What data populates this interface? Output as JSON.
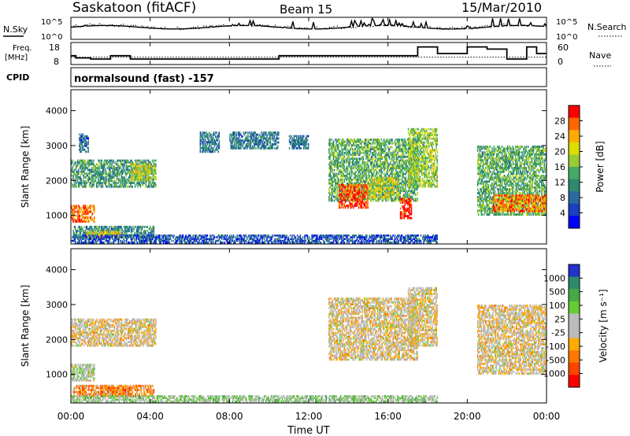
{
  "header": {
    "station": "Saskatoon (fitACF)",
    "beam": "Beam 15",
    "date": "15/Mar/2010",
    "n_sky_label": "N.Sky",
    "n_search_label": "N.Search",
    "freq_label_1": "Freq.",
    "freq_label_2": "[MHz]",
    "nave_label": "Nave",
    "cpid_label": "CPID",
    "cpid_text": "normalsound (fast) -157",
    "nsky_ticks": [
      "10^5",
      "10^0"
    ],
    "nsearch_ticks": [
      "10^5",
      "10^0"
    ],
    "freq_ticks": [
      "18",
      "8"
    ],
    "nave_ticks": [
      "60",
      "0"
    ]
  },
  "chart_data": [
    {
      "type": "line",
      "name": "sky-noise-strip",
      "series": [
        {
          "name": "N.Sky",
          "style": "solid"
        },
        {
          "name": "N.Search",
          "style": "dotted"
        }
      ]
    },
    {
      "type": "line",
      "name": "freq-nave-strip",
      "ylim": [
        8,
        18
      ],
      "y2lim": [
        0,
        60
      ],
      "series": [
        {
          "name": "Freq.",
          "style": "solid",
          "x": [
            0,
            0.25,
            0.5,
            1.0,
            1.5,
            2.0,
            2.5,
            3.0,
            3.5,
            4.0,
            4.5,
            5.0,
            5.5,
            6.0,
            6.5,
            7.0,
            7.5,
            8.0,
            8.5,
            9.0,
            9.5,
            10.0,
            10.5,
            11.0,
            11.5,
            12.0,
            12.5,
            13.0,
            13.5,
            14.0,
            14.5,
            15.0,
            15.5,
            16.0,
            16.5,
            17.0,
            17.5,
            18.0,
            18.5,
            19.0,
            19.5,
            20.0,
            20.5,
            21.0,
            21.5,
            22.0,
            22.5,
            23.0,
            23.5,
            24.0
          ],
          "y": [
            12,
            11,
            11,
            10.5,
            10.5,
            12,
            12,
            10.5,
            10.5,
            10.5,
            10.5,
            10.5,
            10.5,
            10.5,
            10.5,
            10.5,
            10.5,
            10.5,
            10.5,
            10.5,
            10.5,
            10.5,
            12,
            12,
            12,
            12,
            12,
            12,
            12,
            12,
            12,
            12,
            12,
            12,
            12,
            12,
            16,
            16,
            13,
            13,
            13,
            16,
            16,
            15,
            15,
            10.5,
            10.5,
            16,
            13,
            13
          ]
        },
        {
          "name": "Nave",
          "style": "dotted",
          "axis": "right",
          "y": 20
        }
      ]
    },
    {
      "type": "heatmap",
      "name": "power-panel",
      "xlabel": "",
      "ylabel": "Slant Range [km]",
      "xlim": [
        0,
        24
      ],
      "ylim": [
        180,
        4600
      ],
      "yticks": [
        1000,
        2000,
        3000,
        4000
      ],
      "colorbar": {
        "label": "Power [dB]",
        "ticks": [
          "28",
          "24",
          "20",
          "16",
          "12",
          "8",
          "4"
        ],
        "colors": [
          "#ff0000",
          "#ff6600",
          "#ffaa00",
          "#dddd00",
          "#99cc33",
          "#44aa66",
          "#2d8a6e",
          "#2a6aa0",
          "#1a3fc0",
          "#0000ff"
        ]
      },
      "regions": [
        {
          "t0": 0.0,
          "t1": 1.2,
          "r0": 800,
          "r1": 1300,
          "level": 0.85
        },
        {
          "t0": 0.1,
          "t1": 4.2,
          "r0": 350,
          "r1": 700,
          "level": 0.35
        },
        {
          "t0": 0.8,
          "t1": 2.5,
          "r0": 350,
          "r1": 550,
          "level": 0.65
        },
        {
          "t0": 0.0,
          "t1": 4.3,
          "r0": 1800,
          "r1": 2600,
          "level": 0.4
        },
        {
          "t0": 0.4,
          "t1": 0.9,
          "r0": 2800,
          "r1": 3350,
          "level": 0.25
        },
        {
          "t0": 3.0,
          "t1": 4.3,
          "r0": 2000,
          "r1": 2500,
          "level": 0.6
        },
        {
          "t0": 6.5,
          "t1": 7.5,
          "r0": 2800,
          "r1": 3400,
          "level": 0.3
        },
        {
          "t0": 8.0,
          "t1": 10.5,
          "r0": 2900,
          "r1": 3400,
          "level": 0.3
        },
        {
          "t0": 11.0,
          "t1": 12.0,
          "r0": 2900,
          "r1": 3300,
          "level": 0.3
        },
        {
          "t0": 13.0,
          "t1": 17.5,
          "r0": 1400,
          "r1": 3200,
          "level": 0.45
        },
        {
          "t0": 13.5,
          "t1": 15.0,
          "r0": 1200,
          "r1": 1900,
          "level": 0.9
        },
        {
          "t0": 15.0,
          "t1": 16.5,
          "r0": 1500,
          "r1": 2100,
          "level": 0.6
        },
        {
          "t0": 17.0,
          "t1": 18.5,
          "r0": 1800,
          "r1": 3500,
          "level": 0.55
        },
        {
          "t0": 16.6,
          "t1": 17.2,
          "r0": 900,
          "r1": 1500,
          "level": 0.95
        },
        {
          "t0": 20.5,
          "t1": 24.0,
          "r0": 1000,
          "r1": 3000,
          "level": 0.45
        },
        {
          "t0": 21.3,
          "t1": 24.0,
          "r0": 1100,
          "r1": 1600,
          "level": 0.8
        },
        {
          "t0": 0.0,
          "t1": 18.5,
          "r0": 200,
          "r1": 450,
          "level": 0.2
        }
      ]
    },
    {
      "type": "heatmap",
      "name": "velocity-panel",
      "xlabel": "Time UT",
      "ylabel": "Slant Range [km]",
      "xlim": [
        0,
        24
      ],
      "ylim": [
        180,
        4600
      ],
      "yticks": [
        1000,
        2000,
        3000,
        4000
      ],
      "xticks": [
        "00:00",
        "04:00",
        "08:00",
        "12:00",
        "16:00",
        "20:00",
        "00:00"
      ],
      "colorbar": {
        "label": "Velocity [m s⁻¹]",
        "ticks": [
          "1000",
          "500",
          "100",
          "25",
          "-25",
          "-100",
          "-500",
          "-1000"
        ],
        "colors": [
          "#2233cc",
          "#2d8a6e",
          "#44aa44",
          "#66cc33",
          "#bbbbbb",
          "#bbbbbb",
          "#ffaa00",
          "#ff7700",
          "#ff4400",
          "#ff0000"
        ]
      },
      "regions": [
        {
          "t0": 0.0,
          "t1": 1.2,
          "r0": 800,
          "r1": 1300,
          "level": 0.55
        },
        {
          "t0": 0.1,
          "t1": 4.2,
          "r0": 350,
          "r1": 700,
          "level": 0.3
        },
        {
          "t0": 1.5,
          "t1": 3.0,
          "r0": 350,
          "r1": 650,
          "level": 0.25
        },
        {
          "t0": 0.0,
          "t1": 4.3,
          "r0": 1800,
          "r1": 2600,
          "level": 0.45
        },
        {
          "t0": 13.0,
          "t1": 17.5,
          "r0": 1400,
          "r1": 3200,
          "level": 0.45
        },
        {
          "t0": 17.0,
          "t1": 18.5,
          "r0": 1800,
          "r1": 3500,
          "level": 0.45
        },
        {
          "t0": 20.5,
          "t1": 24.0,
          "r0": 1000,
          "r1": 3000,
          "level": 0.45
        },
        {
          "t0": 0.0,
          "t1": 18.5,
          "r0": 200,
          "r1": 400,
          "level": 0.6
        }
      ]
    }
  ]
}
